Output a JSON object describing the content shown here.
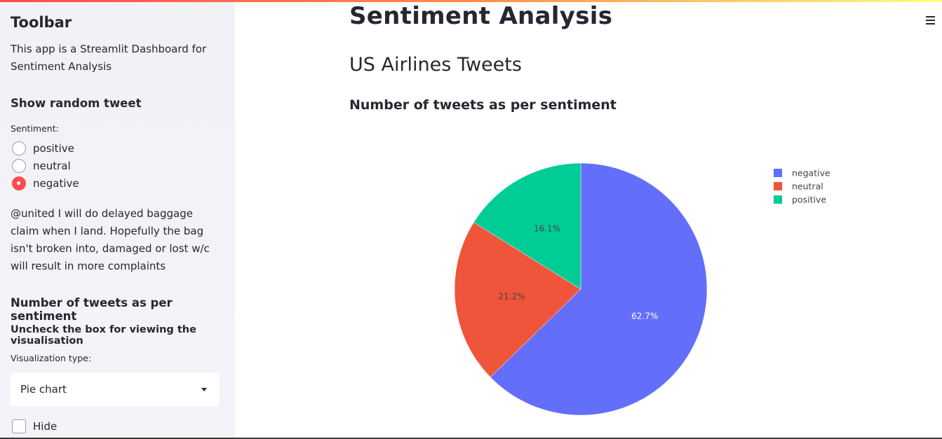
{
  "sidebar": {
    "title": "Toolbar",
    "description": "This app is a Streamlit Dashboard for Sentiment Analysis",
    "random_tweet_heading": "Show random tweet",
    "sentiment_label": "Sentiment:",
    "sentiment_options": [
      {
        "label": "positive",
        "checked": false
      },
      {
        "label": "neutral",
        "checked": false
      },
      {
        "label": "negative",
        "checked": true
      }
    ],
    "tweet_text": "@united I will do delayed baggage claim when I land. Hopefully the bag isn't broken into, damaged or lost w/c will result in more complaints",
    "count_heading": "Number of tweets as per sentiment",
    "uncheck_heading": "Uncheck the box for viewing the visualisation",
    "viz_type_label": "Visualization type:",
    "viz_type_value": "Pie chart",
    "hide_checkbox_label": "Hide",
    "hide_checked": false
  },
  "main": {
    "title": "Sentiment Analysis",
    "subtitle": "US Airlines Tweets",
    "section_heading": "Number of tweets as per sentiment",
    "menu_icon": "hamburger-menu-icon"
  },
  "colors": {
    "accent": "#ff4b4b",
    "negative": "#636efa",
    "neutral": "#ef553b",
    "positive": "#00cc96"
  },
  "chart_data": {
    "type": "pie",
    "title": "",
    "categories": [
      "negative",
      "neutral",
      "positive"
    ],
    "values": [
      62.7,
      21.2,
      16.1
    ],
    "labels": [
      "62.7%",
      "21.2%",
      "16.1%"
    ],
    "colors": [
      "#636efa",
      "#ef553b",
      "#00cc96"
    ],
    "legend": [
      "negative",
      "neutral",
      "positive"
    ],
    "legend_position": "top-right"
  }
}
